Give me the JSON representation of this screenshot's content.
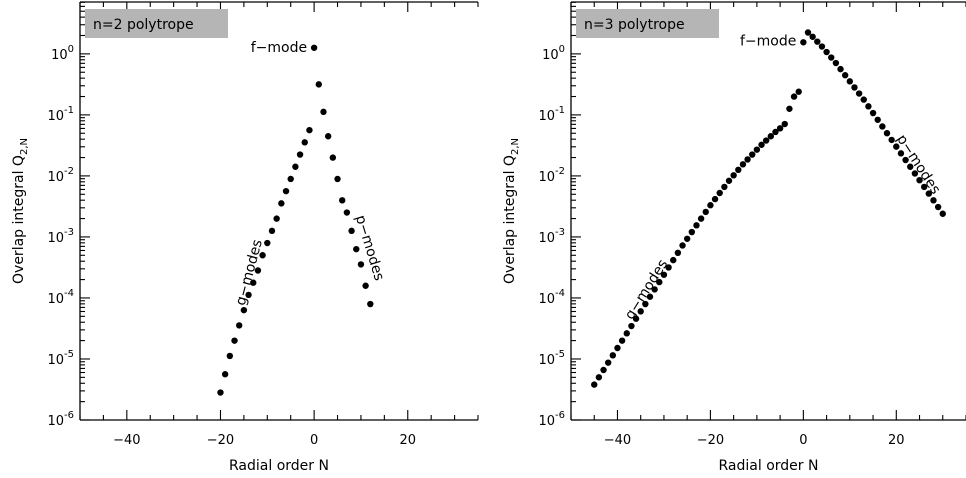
{
  "chart_data": [
    {
      "type": "scatter",
      "title": "n=2 polytrope",
      "xlabel": "Radial order N",
      "ylabel_main": "Overlap integral Q",
      "ylabel_sub": "2,N",
      "xlim": [
        -50,
        35
      ],
      "xticks": [
        -40,
        -20,
        0,
        20
      ],
      "ylog": true,
      "ylim_exp": [
        -6,
        0.85
      ],
      "yticks_exp": [
        -6,
        -5,
        -4,
        -3,
        -2,
        -1,
        0
      ],
      "grid": false,
      "annotations": [
        {
          "text": "f−mode",
          "x": -1.5,
          "y_exp": 0.1,
          "rotate": 0,
          "anchor": "end"
        },
        {
          "text": "g−modes",
          "x": -13,
          "y_exp": -3.6,
          "rotate": -75,
          "anchor": "middle"
        },
        {
          "text": "p−modes",
          "x": 11,
          "y_exp": -3.2,
          "rotate": 73,
          "anchor": "middle"
        }
      ],
      "points": [
        [
          -20,
          -5.55
        ],
        [
          -19,
          -5.25
        ],
        [
          -18,
          -4.95
        ],
        [
          -17,
          -4.7
        ],
        [
          -16,
          -4.45
        ],
        [
          -15,
          -4.2
        ],
        [
          -14,
          -3.95
        ],
        [
          -13,
          -3.75
        ],
        [
          -12,
          -3.55
        ],
        [
          -11,
          -3.3
        ],
        [
          -10,
          -3.1
        ],
        [
          -9,
          -2.9
        ],
        [
          -8,
          -2.7
        ],
        [
          -7,
          -2.45
        ],
        [
          -6,
          -2.25
        ],
        [
          -5,
          -2.05
        ],
        [
          -4,
          -1.85
        ],
        [
          -3,
          -1.65
        ],
        [
          -2,
          -1.45
        ],
        [
          -1,
          -1.25
        ],
        [
          0,
          0.1
        ],
        [
          1,
          -0.5
        ],
        [
          2,
          -0.95
        ],
        [
          3,
          -1.35
        ],
        [
          4,
          -1.7
        ],
        [
          5,
          -2.05
        ],
        [
          6,
          -2.4
        ],
        [
          7,
          -2.6
        ],
        [
          8,
          -2.9
        ],
        [
          9,
          -3.2
        ],
        [
          10,
          -3.45
        ],
        [
          11,
          -3.8
        ],
        [
          12,
          -4.1
        ]
      ]
    },
    {
      "type": "scatter",
      "title": "n=3 polytrope",
      "xlabel": "Radial order N",
      "ylabel_main": "Overlap integral Q",
      "ylabel_sub": "2,N",
      "xlim": [
        -50,
        35
      ],
      "xticks": [
        -40,
        -20,
        0,
        20
      ],
      "ylog": true,
      "ylim_exp": [
        -6,
        0.85
      ],
      "yticks_exp": [
        -6,
        -5,
        -4,
        -3,
        -2,
        -1,
        0
      ],
      "grid": false,
      "annotations": [
        {
          "text": "f−mode",
          "x": -1.5,
          "y_exp": 0.2,
          "rotate": 0,
          "anchor": "end"
        },
        {
          "text": "g−modes",
          "x": -33,
          "y_exp": -3.9,
          "rotate": -58,
          "anchor": "middle"
        },
        {
          "text": "p−modes",
          "x": 24,
          "y_exp": -1.85,
          "rotate": 57,
          "anchor": "middle"
        }
      ],
      "points": [
        [
          -45,
          -5.42
        ],
        [
          -44,
          -5.3
        ],
        [
          -43,
          -5.18
        ],
        [
          -42,
          -5.06
        ],
        [
          -41,
          -4.94
        ],
        [
          -40,
          -4.82
        ],
        [
          -39,
          -4.7
        ],
        [
          -38,
          -4.58
        ],
        [
          -37,
          -4.46
        ],
        [
          -36,
          -4.34
        ],
        [
          -35,
          -4.22
        ],
        [
          -34,
          -4.1
        ],
        [
          -33,
          -3.98
        ],
        [
          -32,
          -3.86
        ],
        [
          -31,
          -3.74
        ],
        [
          -30,
          -3.62
        ],
        [
          -29,
          -3.5
        ],
        [
          -28,
          -3.38
        ],
        [
          -27,
          -3.26
        ],
        [
          -26,
          -3.14
        ],
        [
          -25,
          -3.03
        ],
        [
          -24,
          -2.92
        ],
        [
          -23,
          -2.81
        ],
        [
          -22,
          -2.7
        ],
        [
          -21,
          -2.59
        ],
        [
          -20,
          -2.48
        ],
        [
          -19,
          -2.38
        ],
        [
          -18,
          -2.28
        ],
        [
          -17,
          -2.18
        ],
        [
          -16,
          -2.08
        ],
        [
          -15,
          -1.99
        ],
        [
          -14,
          -1.9
        ],
        [
          -13,
          -1.81
        ],
        [
          -12,
          -1.73
        ],
        [
          -11,
          -1.65
        ],
        [
          -10,
          -1.57
        ],
        [
          -9,
          -1.49
        ],
        [
          -8,
          -1.42
        ],
        [
          -7,
          -1.35
        ],
        [
          -6,
          -1.28
        ],
        [
          -5,
          -1.22
        ],
        [
          -4,
          -1.15
        ],
        [
          -3,
          -0.9
        ],
        [
          -2,
          -0.7
        ],
        [
          -1,
          -0.62
        ],
        [
          0,
          0.19
        ],
        [
          1,
          0.35
        ],
        [
          2,
          0.28
        ],
        [
          3,
          0.2
        ],
        [
          4,
          0.12
        ],
        [
          5,
          0.03
        ],
        [
          6,
          -0.06
        ],
        [
          7,
          -0.15
        ],
        [
          8,
          -0.25
        ],
        [
          9,
          -0.35
        ],
        [
          10,
          -0.45
        ],
        [
          11,
          -0.55
        ],
        [
          12,
          -0.65
        ],
        [
          13,
          -0.75
        ],
        [
          14,
          -0.86
        ],
        [
          15,
          -0.97
        ],
        [
          16,
          -1.08
        ],
        [
          17,
          -1.19
        ],
        [
          18,
          -1.3
        ],
        [
          19,
          -1.41
        ],
        [
          20,
          -1.52
        ],
        [
          21,
          -1.63
        ],
        [
          22,
          -1.74
        ],
        [
          23,
          -1.85
        ],
        [
          24,
          -1.96
        ],
        [
          25,
          -2.07
        ],
        [
          26,
          -2.18
        ],
        [
          27,
          -2.29
        ],
        [
          28,
          -2.4
        ],
        [
          29,
          -2.51
        ],
        [
          30,
          -2.62
        ]
      ]
    }
  ]
}
